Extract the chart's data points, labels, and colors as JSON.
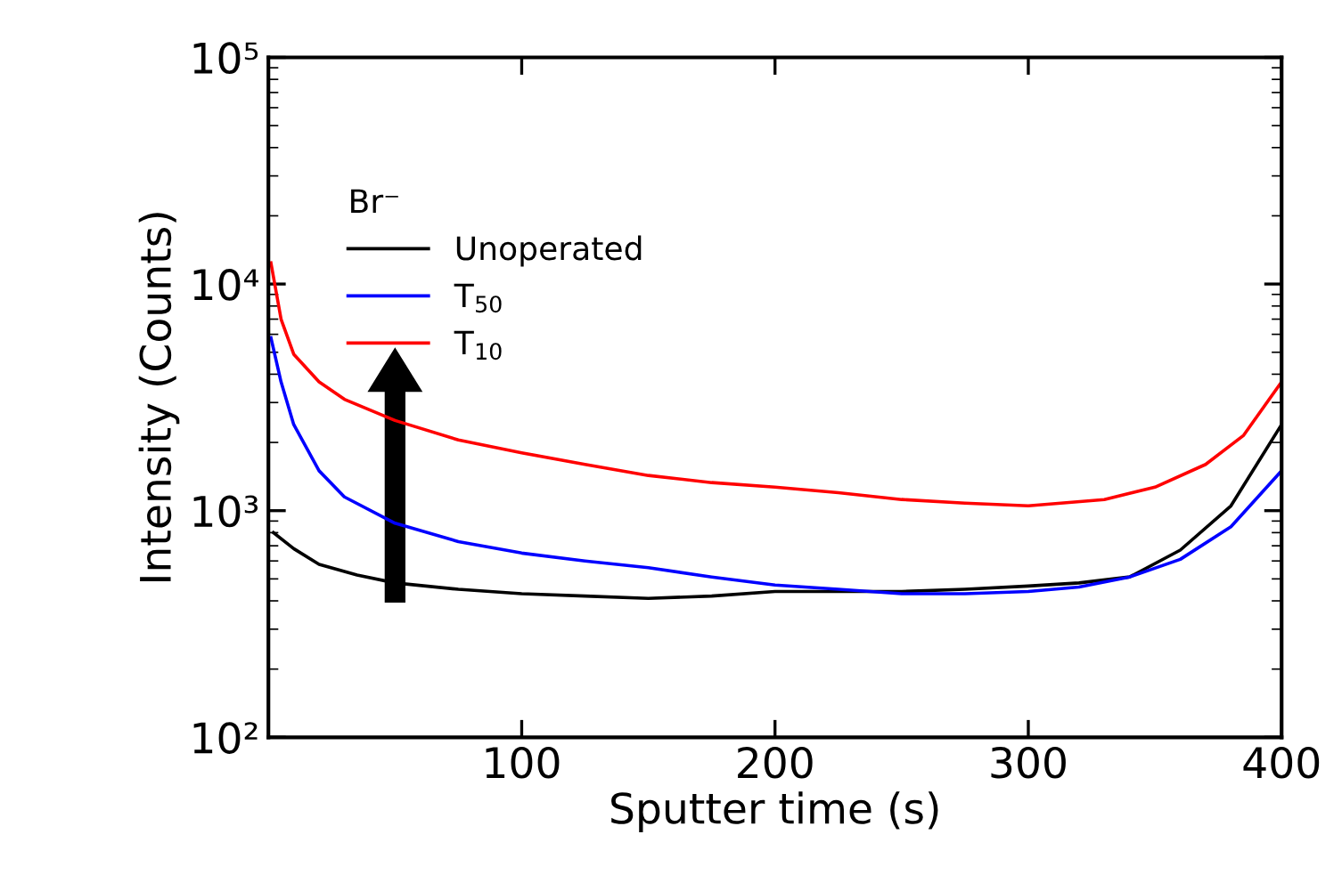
{
  "chart_data": {
    "type": "line",
    "xlabel": "Sputter time (s)",
    "ylabel": "Intensity (Counts)",
    "legend_title": "Br⁻",
    "legend": "top left",
    "log": "y",
    "grid": false,
    "xlim": [
      0,
      400
    ],
    "ylim": [
      100,
      100000
    ],
    "xticks": [
      100,
      200,
      300,
      400
    ],
    "yticks": [
      {
        "value": 100,
        "label": "10²"
      },
      {
        "value": 1000,
        "label": "10³"
      },
      {
        "value": 10000,
        "label": "10⁴"
      },
      {
        "value": 100000,
        "label": "10⁵"
      }
    ],
    "series": [
      {
        "name": "Unoperated",
        "color": "#000000",
        "x": [
          2,
          10,
          20,
          35,
          50,
          75,
          100,
          125,
          150,
          175,
          200,
          225,
          250,
          275,
          300,
          320,
          340,
          360,
          380,
          400
        ],
        "values": [
          800,
          680,
          580,
          520,
          480,
          450,
          430,
          420,
          410,
          420,
          440,
          440,
          440,
          450,
          465,
          480,
          510,
          670,
          1050,
          2400
        ]
      },
      {
        "name": "T$_{50}$",
        "color": "#0000ff",
        "x": [
          1,
          5,
          10,
          20,
          30,
          50,
          75,
          100,
          125,
          150,
          175,
          200,
          225,
          250,
          275,
          300,
          320,
          340,
          360,
          380,
          400
        ],
        "values": [
          5800,
          3700,
          2400,
          1500,
          1150,
          880,
          730,
          650,
          600,
          560,
          510,
          470,
          450,
          430,
          430,
          440,
          460,
          510,
          610,
          850,
          1500
        ]
      },
      {
        "name": "T$_{10}$",
        "color": "#ff0000",
        "x": [
          1,
          5,
          10,
          20,
          30,
          50,
          75,
          100,
          125,
          150,
          175,
          200,
          225,
          250,
          275,
          300,
          330,
          350,
          370,
          385,
          400
        ],
        "values": [
          12400,
          7000,
          4900,
          3700,
          3100,
          2500,
          2050,
          1800,
          1600,
          1430,
          1330,
          1270,
          1200,
          1120,
          1080,
          1050,
          1120,
          1270,
          1600,
          2150,
          3700
        ]
      }
    ]
  }
}
